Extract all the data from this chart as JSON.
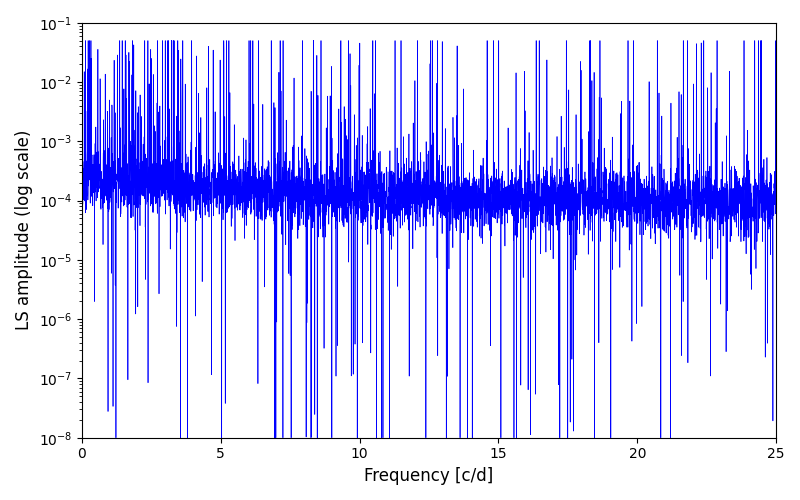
{
  "xlabel": "Frequency [c/d]",
  "ylabel": "LS amplitude (log scale)",
  "xlim": [
    0,
    25
  ],
  "ylim": [
    1e-08,
    0.1
  ],
  "line_color": "#0000ff",
  "line_width": 0.5,
  "freq_max": 25.0,
  "n_points": 5000,
  "seed": 7,
  "background_color": "#ffffff",
  "fig_width": 8.0,
  "fig_height": 5.0,
  "dpi": 100
}
